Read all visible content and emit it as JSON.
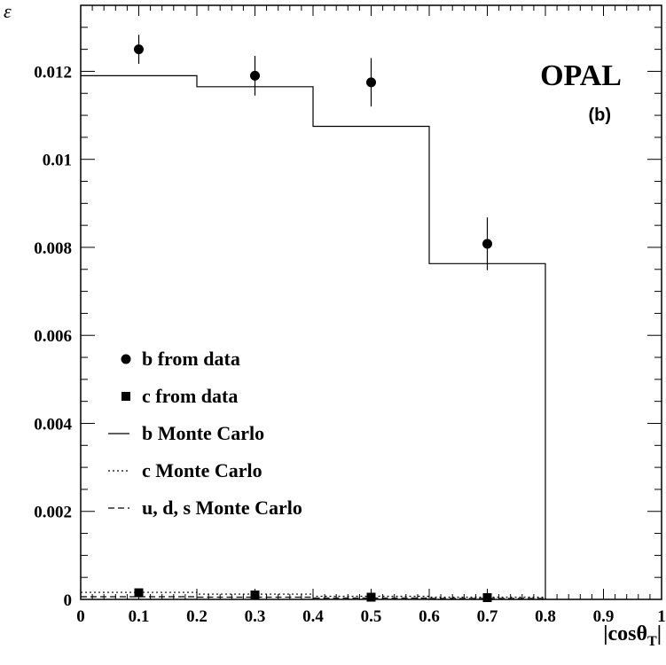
{
  "chart_data": {
    "type": "scatter",
    "title": "",
    "brand_label": "OPAL",
    "panel_label": "(b)",
    "xlabel": {
      "prefix": "|cos",
      "symbol": "θ",
      "subscript": "T",
      "suffix": "|"
    },
    "ylabel": "ε",
    "xlim": [
      0,
      1
    ],
    "ylim": [
      0,
      0.0135
    ],
    "x_ticks": [
      {
        "value": 0,
        "label": "0"
      },
      {
        "value": 0.1,
        "label": "0.1"
      },
      {
        "value": 0.2,
        "label": "0.2"
      },
      {
        "value": 0.3,
        "label": "0.3"
      },
      {
        "value": 0.4,
        "label": "0.4"
      },
      {
        "value": 0.5,
        "label": "0.5"
      },
      {
        "value": 0.6,
        "label": "0.6"
      },
      {
        "value": 0.7,
        "label": "0.7"
      },
      {
        "value": 0.8,
        "label": "0.8"
      },
      {
        "value": 0.9,
        "label": "0.9"
      },
      {
        "value": 1,
        "label": "1"
      }
    ],
    "y_ticks": [
      {
        "value": 0,
        "label": "0"
      },
      {
        "value": 0.002,
        "label": "0.002"
      },
      {
        "value": 0.004,
        "label": "0.004"
      },
      {
        "value": 0.006,
        "label": "0.006"
      },
      {
        "value": 0.008,
        "label": "0.008"
      },
      {
        "value": 0.01,
        "label": "0.01"
      },
      {
        "value": 0.012,
        "label": "0.012"
      }
    ],
    "grid": false,
    "legend_position": "bottom-left",
    "series": [
      {
        "name": "b from data",
        "kind": "points",
        "marker": "circle",
        "x": [
          0.1,
          0.3,
          0.5,
          0.7
        ],
        "y": [
          0.0125,
          0.0119,
          0.01175,
          0.00808
        ],
        "yerr": [
          0.00033,
          0.00045,
          0.00055,
          0.0006
        ]
      },
      {
        "name": "c from data",
        "kind": "points",
        "marker": "square",
        "x": [
          0.1,
          0.3,
          0.5,
          0.7
        ],
        "y": [
          0.00015,
          0.0001,
          5e-05,
          4e-05
        ],
        "yerr": [
          3e-05,
          3e-05,
          2e-05,
          2e-05
        ]
      },
      {
        "name": "b Monte Carlo",
        "kind": "histogram",
        "line": "solid",
        "bin_edges": [
          0,
          0.2,
          0.4,
          0.6,
          0.8
        ],
        "values": [
          0.0119,
          0.01165,
          0.01075,
          0.00763
        ]
      },
      {
        "name": "c Monte Carlo",
        "kind": "histogram",
        "line": "dotted",
        "bin_edges": [
          0,
          0.2,
          0.4,
          0.6,
          0.8
        ],
        "values": [
          0.00016,
          0.00012,
          7e-05,
          5e-05
        ]
      },
      {
        "name": "u, d, s Monte Carlo",
        "kind": "histogram",
        "line": "dashed",
        "bin_edges": [
          0,
          0.2,
          0.4,
          0.6,
          0.8
        ],
        "values": [
          6e-05,
          5e-05,
          3e-05,
          2e-05
        ]
      }
    ]
  }
}
